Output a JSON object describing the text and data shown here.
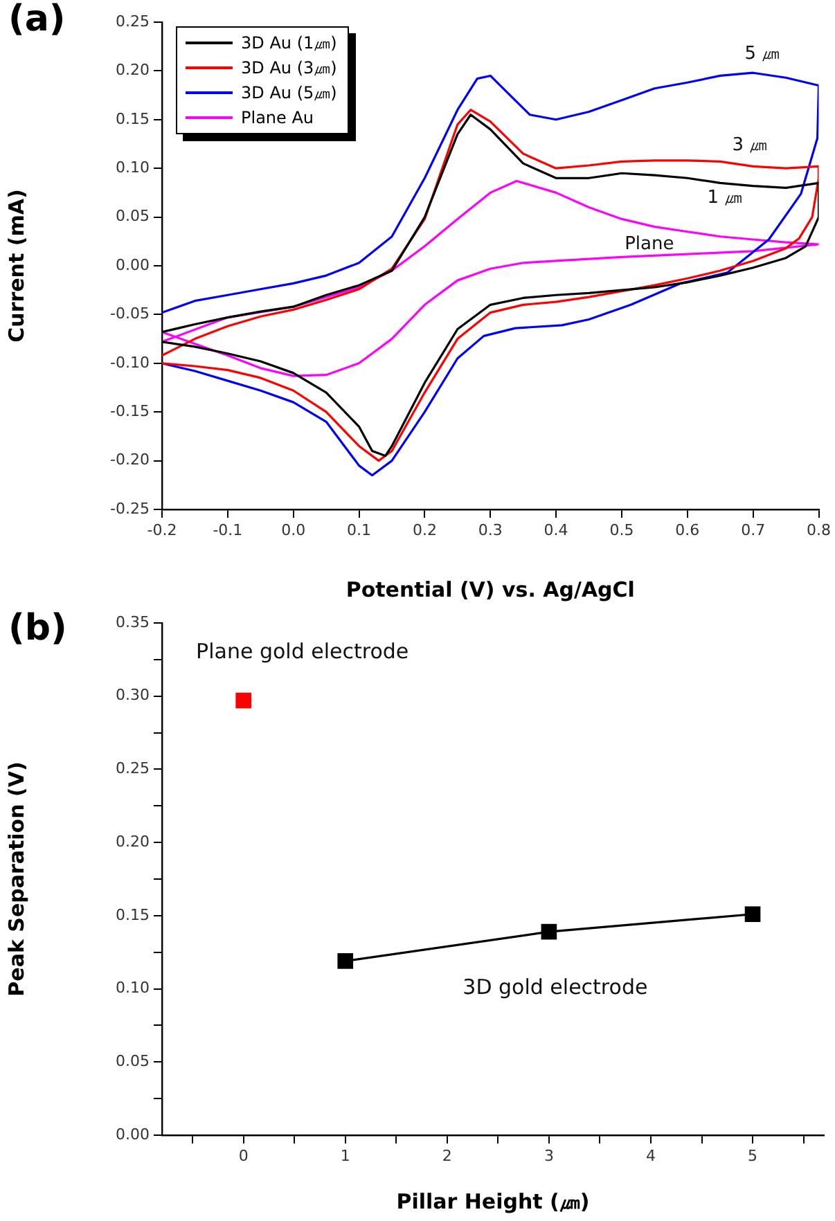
{
  "chart_data": [
    {
      "type": "line",
      "title": "(a)",
      "xlabel": "Potential (V) vs. Ag/AgCl",
      "ylabel": "Current (mA)",
      "legend": "top left",
      "marker": "none",
      "line_style": "solid",
      "grid": false,
      "xlim": [
        -0.2,
        0.8
      ],
      "ylim": [
        -0.25,
        0.25
      ],
      "xticks": [
        {
          "value": -0.2,
          "label": "-0.2"
        },
        {
          "value": -0.1,
          "label": "-0.1"
        },
        {
          "value": 0,
          "label": "0.0"
        },
        {
          "value": 0.1,
          "label": "0.1"
        },
        {
          "value": 0.2,
          "label": "0.2"
        },
        {
          "value": 0.3,
          "label": "0.3"
        },
        {
          "value": 0.4,
          "label": "0.4"
        },
        {
          "value": 0.5,
          "label": "0.5"
        },
        {
          "value": 0.6,
          "label": "0.6"
        },
        {
          "value": 0.7,
          "label": "0.7"
        },
        {
          "value": 0.8,
          "label": "0.8"
        }
      ],
      "yticks": [
        {
          "value": -0.25,
          "label": "-0.25"
        },
        {
          "value": -0.2,
          "label": "-0.20"
        },
        {
          "value": -0.15,
          "label": "-0.15"
        },
        {
          "value": -0.1,
          "label": "-0.10"
        },
        {
          "value": -0.05,
          "label": "-0.05"
        },
        {
          "value": 0,
          "label": "0.00"
        },
        {
          "value": 0.05,
          "label": "0.05"
        },
        {
          "value": 0.1,
          "label": "0.10"
        },
        {
          "value": 0.15,
          "label": "0.15"
        },
        {
          "value": 0.2,
          "label": "0.20"
        },
        {
          "value": 0.25,
          "label": "0.25"
        }
      ],
      "series": [
        {
          "name": "3D Au (1㎛)",
          "color": "#000000",
          "x": [
            -0.2,
            -0.15,
            -0.1,
            -0.05,
            0,
            0.05,
            0.1,
            0.15,
            0.2,
            0.25,
            0.27,
            0.3,
            0.35,
            0.4,
            0.45,
            0.5,
            0.55,
            0.6,
            0.65,
            0.7,
            0.75,
            0.8,
            0.8,
            0.78,
            0.75,
            0.7,
            0.65,
            0.6,
            0.55,
            0.5,
            0.45,
            0.4,
            0.35,
            0.3,
            0.25,
            0.2,
            0.15,
            0.14,
            0.12,
            0.1,
            0.05,
            0,
            -0.05,
            -0.1,
            -0.15,
            -0.2
          ],
          "values": [
            -0.068,
            -0.06,
            -0.053,
            -0.047,
            -0.042,
            -0.03,
            -0.02,
            -0.005,
            0.05,
            0.135,
            0.155,
            0.14,
            0.105,
            0.09,
            0.09,
            0.095,
            0.093,
            0.09,
            0.085,
            0.082,
            0.08,
            0.085,
            0.05,
            0.02,
            0.008,
            -0.002,
            -0.01,
            -0.017,
            -0.022,
            -0.025,
            -0.028,
            -0.03,
            -0.033,
            -0.04,
            -0.065,
            -0.12,
            -0.185,
            -0.195,
            -0.19,
            -0.165,
            -0.13,
            -0.11,
            -0.098,
            -0.09,
            -0.083,
            -0.078
          ]
        },
        {
          "name": "3D Au (3㎛)",
          "color": "#ff0000",
          "x": [
            -0.2,
            -0.15,
            -0.1,
            -0.05,
            0,
            0.05,
            0.1,
            0.15,
            0.2,
            0.25,
            0.27,
            0.3,
            0.35,
            0.4,
            0.45,
            0.5,
            0.55,
            0.6,
            0.65,
            0.7,
            0.75,
            0.8,
            0.8,
            0.79,
            0.77,
            0.75,
            0.7,
            0.65,
            0.6,
            0.55,
            0.5,
            0.45,
            0.4,
            0.35,
            0.3,
            0.25,
            0.2,
            0.15,
            0.13,
            0.1,
            0.05,
            0,
            -0.05,
            -0.1,
            -0.15,
            -0.2
          ],
          "values": [
            -0.092,
            -0.075,
            -0.062,
            -0.052,
            -0.045,
            -0.035,
            -0.024,
            -0.003,
            0.048,
            0.145,
            0.16,
            0.148,
            0.115,
            0.1,
            0.103,
            0.107,
            0.108,
            0.108,
            0.107,
            0.102,
            0.1,
            0.102,
            0.09,
            0.05,
            0.028,
            0.018,
            0.005,
            -0.005,
            -0.013,
            -0.02,
            -0.026,
            -0.032,
            -0.037,
            -0.04,
            -0.048,
            -0.075,
            -0.13,
            -0.19,
            -0.2,
            -0.185,
            -0.15,
            -0.128,
            -0.115,
            -0.107,
            -0.103,
            -0.1
          ]
        },
        {
          "name": "3D Au (5㎛)",
          "color": "#0000ff",
          "x": [
            -0.2,
            -0.15,
            -0.1,
            -0.05,
            0,
            0.05,
            0.1,
            0.15,
            0.2,
            0.25,
            0.28,
            0.3,
            0.33,
            0.36,
            0.4,
            0.45,
            0.5,
            0.55,
            0.6,
            0.65,
            0.7,
            0.75,
            0.8,
            0.798,
            0.773,
            0.724,
            0.661,
            0.59,
            0.514,
            0.45,
            0.409,
            0.338,
            0.29,
            0.25,
            0.2,
            0.15,
            0.12,
            0.1,
            0.05,
            0,
            -0.05,
            -0.1,
            -0.15,
            -0.2
          ],
          "values": [
            -0.048,
            -0.036,
            -0.03,
            -0.024,
            -0.018,
            -0.01,
            0.003,
            0.03,
            0.09,
            0.16,
            0.192,
            0.195,
            0.175,
            0.155,
            0.15,
            0.158,
            0.17,
            0.182,
            0.188,
            0.195,
            0.198,
            0.193,
            0.185,
            0.131,
            0.074,
            0.027,
            -0.007,
            -0.018,
            -0.04,
            -0.055,
            -0.061,
            -0.064,
            -0.072,
            -0.095,
            -0.15,
            -0.2,
            -0.215,
            -0.205,
            -0.16,
            -0.14,
            -0.128,
            -0.118,
            -0.108,
            -0.1
          ]
        },
        {
          "name": "Plane Au",
          "color": "#ff00ff",
          "x": [
            -0.2,
            -0.1,
            0,
            0.1,
            0.15,
            0.2,
            0.25,
            0.3,
            0.34,
            0.4,
            0.45,
            0.5,
            0.55,
            0.6,
            0.65,
            0.7,
            0.75,
            0.8,
            0.7,
            0.6,
            0.5,
            0.4,
            0.35,
            0.3,
            0.25,
            0.2,
            0.15,
            0.1,
            0.05,
            0,
            -0.05,
            -0.1,
            -0.15,
            -0.2
          ],
          "values": [
            -0.078,
            -0.053,
            -0.042,
            -0.022,
            -0.005,
            0.02,
            0.048,
            0.075,
            0.087,
            0.075,
            0.06,
            0.048,
            0.04,
            0.035,
            0.03,
            0.027,
            0.024,
            0.022,
            0.015,
            0.012,
            0.009,
            0.005,
            0.003,
            -0.003,
            -0.015,
            -0.04,
            -0.075,
            -0.1,
            -0.112,
            -0.113,
            -0.105,
            -0.092,
            -0.08,
            -0.068
          ]
        }
      ],
      "annotations": [
        "5 ㎛",
        "3 ㎛",
        "1 ㎛",
        "Plane"
      ]
    },
    {
      "type": "scatter",
      "title": "(b)",
      "xlabel": "Pillar Height (㎛)",
      "ylabel": "Peak Separation (V)",
      "legend": false,
      "marker": "square",
      "grid": false,
      "xlim": [
        -0.8,
        5.7
      ],
      "ylim": [
        0,
        0.35
      ],
      "xticks": [
        {
          "value": -0.5,
          "label": null
        },
        0,
        {
          "value": 0.5,
          "label": null
        },
        1,
        {
          "value": 1.5,
          "label": null
        },
        2,
        {
          "value": 2.5,
          "label": null
        },
        3,
        {
          "value": 3.5,
          "label": null
        },
        4,
        {
          "value": 4.5,
          "label": null
        },
        5,
        {
          "value": 5.5,
          "label": null
        }
      ],
      "yticks": [
        {
          "value": 0,
          "label": "0.00"
        },
        {
          "value": 0.025,
          "label": null
        },
        {
          "value": 0.05,
          "label": "0.05"
        },
        {
          "value": 0.075,
          "label": null
        },
        {
          "value": 0.1,
          "label": "0.10"
        },
        {
          "value": 0.125,
          "label": null
        },
        {
          "value": 0.15,
          "label": "0.15"
        },
        {
          "value": 0.175,
          "label": null
        },
        {
          "value": 0.2,
          "label": "0.20"
        },
        {
          "value": 0.225,
          "label": null
        },
        {
          "value": 0.25,
          "label": "0.25"
        },
        {
          "value": 0.275,
          "label": null
        },
        {
          "value": 0.3,
          "label": "0.30"
        },
        {
          "value": 0.325,
          "label": null
        },
        {
          "value": 0.35,
          "label": "0.35"
        }
      ],
      "series": [
        {
          "type": "scatter",
          "color": "#ff0000",
          "x": [
            0
          ],
          "values": [
            0.297
          ]
        },
        {
          "type": "line",
          "color": "#000000",
          "x": [
            1,
            3,
            5
          ],
          "values": [
            0.119,
            0.139,
            0.151
          ]
        }
      ],
      "annotations": [
        "Plane gold electrode",
        "3D gold electrode"
      ]
    }
  ]
}
